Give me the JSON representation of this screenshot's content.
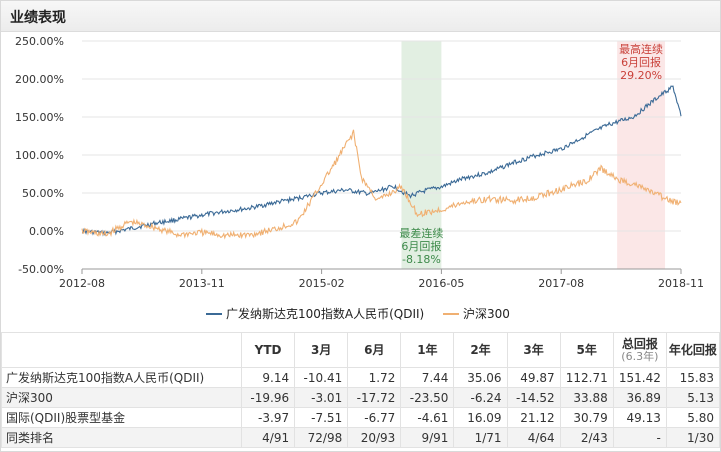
{
  "header": {
    "title": "业绩表现"
  },
  "chart_data": {
    "type": "line",
    "x_ticks": [
      "2012-08",
      "2013-11",
      "2015-02",
      "2016-05",
      "2017-08",
      "2018-11"
    ],
    "x_range": [
      "2012-08",
      "2018-11"
    ],
    "y_ticks": [
      "250.00%",
      "200.00%",
      "150.00%",
      "100.00%",
      "50.00%",
      "0.00%",
      "-50.00%"
    ],
    "ylim": [
      -50,
      250
    ],
    "series": [
      {
        "name": "广发纳斯达克100指数A人民币(QDII)",
        "color": "#3b6a96",
        "x": [
          "2012-08",
          "2012-11",
          "2013-02",
          "2013-05",
          "2013-08",
          "2013-11",
          "2014-02",
          "2014-05",
          "2014-08",
          "2014-11",
          "2015-02",
          "2015-05",
          "2015-08",
          "2015-11",
          "2016-01",
          "2016-03",
          "2016-05",
          "2016-08",
          "2016-11",
          "2017-02",
          "2017-05",
          "2017-08",
          "2017-11",
          "2018-02",
          "2018-05",
          "2018-08",
          "2018-10",
          "2018-11"
        ],
        "values": [
          0,
          -3,
          3,
          10,
          15,
          21,
          26,
          30,
          37,
          43,
          50,
          54,
          49,
          59,
          46,
          53,
          58,
          70,
          77,
          90,
          100,
          108,
          125,
          140,
          150,
          175,
          190,
          151
        ]
      },
      {
        "name": "沪深300",
        "color": "#f0b072",
        "x": [
          "2012-08",
          "2012-11",
          "2013-02",
          "2013-05",
          "2013-08",
          "2013-11",
          "2014-02",
          "2014-05",
          "2014-08",
          "2014-11",
          "2015-01",
          "2015-04",
          "2015-06",
          "2015-07",
          "2015-09",
          "2015-12",
          "2016-02",
          "2016-05",
          "2016-08",
          "2016-11",
          "2017-02",
          "2017-05",
          "2017-08",
          "2017-11",
          "2018-01",
          "2018-03",
          "2018-05",
          "2018-08",
          "2018-10",
          "2018-11"
        ],
        "values": [
          0,
          -5,
          12,
          5,
          -5,
          -2,
          -6,
          -5,
          2,
          12,
          45,
          95,
          130,
          70,
          40,
          58,
          22,
          28,
          38,
          42,
          40,
          45,
          55,
          65,
          82,
          68,
          62,
          48,
          38,
          37
        ]
      }
    ],
    "annotations": [
      {
        "label": [
          "最差连续",
          "6月回报",
          "-8.18%"
        ],
        "x_start": "2015-12",
        "x_end": "2016-05",
        "color": "#3d8a4a"
      },
      {
        "label": [
          "最高连续",
          "6月回报",
          "29.20%"
        ],
        "x_start": "2018-03",
        "x_end": "2018-09",
        "color": "#c9413a"
      }
    ]
  },
  "table": {
    "columns": [
      {
        "main": ""
      },
      {
        "main": "YTD"
      },
      {
        "main": "3月"
      },
      {
        "main": "6月"
      },
      {
        "main": "1年"
      },
      {
        "main": "2年"
      },
      {
        "main": "3年"
      },
      {
        "main": "5年"
      },
      {
        "main": "总回报",
        "sub": "(6.3年)"
      },
      {
        "main": "年化回报"
      }
    ],
    "rows": [
      [
        "广发纳斯达克100指数A人民币(QDII)",
        "9.14",
        "-10.41",
        "1.72",
        "7.44",
        "35.06",
        "49.87",
        "112.71",
        "151.42",
        "15.83"
      ],
      [
        "沪深300",
        "-19.96",
        "-3.01",
        "-17.72",
        "-23.50",
        "-6.24",
        "-14.52",
        "33.88",
        "36.89",
        "5.13"
      ],
      [
        "国际(QDII)股票型基金",
        "-3.97",
        "-7.51",
        "-6.77",
        "-4.61",
        "16.09",
        "21.12",
        "30.79",
        "49.13",
        "5.80"
      ],
      [
        "同类排名",
        "4/91",
        "72/98",
        "20/93",
        "9/91",
        "1/71",
        "4/64",
        "2/43",
        "-",
        "1/30"
      ]
    ]
  }
}
